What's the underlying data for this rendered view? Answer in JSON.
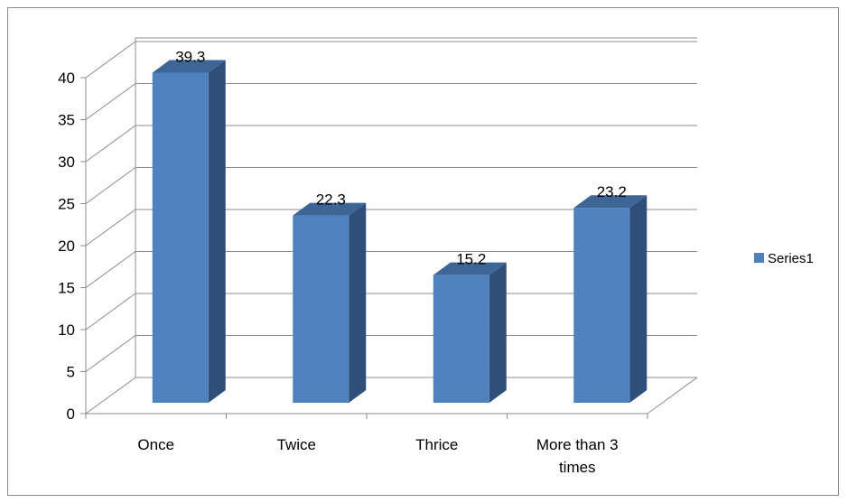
{
  "chart_data": {
    "type": "bar",
    "style": "3d-clustered-column",
    "categories": [
      "Once",
      "Twice",
      "Thrice",
      "More than 3 times"
    ],
    "category_label_lines": [
      [
        "Once"
      ],
      [
        "Twice"
      ],
      [
        "Thrice"
      ],
      [
        "More than 3",
        "times"
      ]
    ],
    "series": [
      {
        "name": "Series1",
        "values": [
          39.3,
          22.3,
          15.2,
          23.2
        ]
      }
    ],
    "data_labels": [
      "39.3",
      "22.3",
      "15.2",
      "23.2"
    ],
    "y_ticks": [
      "0",
      "5",
      "10",
      "15",
      "20",
      "25",
      "30",
      "35",
      "40"
    ],
    "ylim": [
      0,
      45
    ],
    "grid": true,
    "legend": "right",
    "colors": {
      "bar_front": "#4f81bd",
      "bar_side": "#2f4f7a",
      "bar_top": "#3d6596",
      "gridline": "#8c8c8c"
    }
  }
}
